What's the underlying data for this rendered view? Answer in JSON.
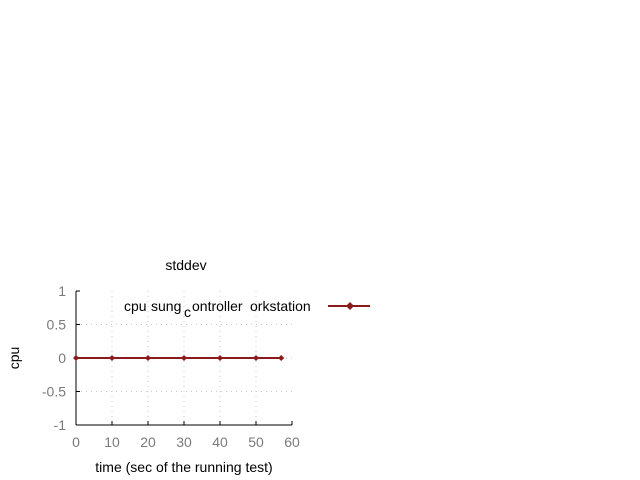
{
  "chart_data": {
    "type": "line",
    "title": "stddev",
    "xlabel": "time (sec of the running test)",
    "ylabel": "cpu",
    "xlim": [
      0,
      60
    ],
    "ylim": [
      -1,
      1
    ],
    "xticks": [
      0,
      10,
      20,
      30,
      40,
      50,
      60
    ],
    "yticks": [
      -1,
      -0.5,
      0,
      0.5,
      1
    ],
    "ytick_labels": [
      "-1",
      "-0.5",
      "0",
      "0.5",
      "1"
    ],
    "grid": true,
    "legend_position": "top-right",
    "series": [
      {
        "name": "cpu#sung_controller#workstation",
        "legend_parts": {
          "a": "cpu",
          "b": "sung",
          "sub": "c",
          "c": "ontroller",
          "d": "orkstation"
        },
        "color": "#8b1a1a",
        "x": [
          0,
          10,
          20,
          30,
          40,
          50,
          57
        ],
        "y": [
          0,
          0,
          0,
          0,
          0,
          0,
          0
        ]
      }
    ]
  }
}
